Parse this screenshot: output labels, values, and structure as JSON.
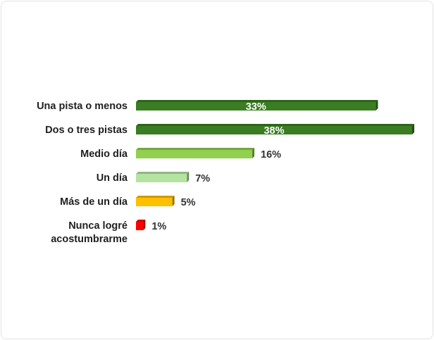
{
  "chart_data": {
    "type": "bar",
    "orientation": "horizontal",
    "title": "",
    "xlabel": "",
    "ylabel": "",
    "categories": [
      "Una pista o menos",
      "Dos o tres pistas",
      "Medio día",
      "Un día",
      "Más de un día",
      "Nunca logré acostumbrarme"
    ],
    "category_lines": [
      [
        "Una pista o menos"
      ],
      [
        "Dos o tres pistas"
      ],
      [
        "Medio día"
      ],
      [
        "Un día"
      ],
      [
        "Más de un día"
      ],
      [
        "Nunca logré",
        "acostumbrarme"
      ]
    ],
    "values": [
      33,
      38,
      16,
      7,
      5,
      1
    ],
    "labels": [
      "33%",
      "38%",
      "16%",
      "7%",
      "5%",
      "1%"
    ],
    "colors": [
      "#3a7d22",
      "#3a7d22",
      "#92d050",
      "#b5e3a2",
      "#ffc000",
      "#ff0000"
    ],
    "xlim": [
      0,
      38
    ],
    "grid": false,
    "legend": "none"
  }
}
